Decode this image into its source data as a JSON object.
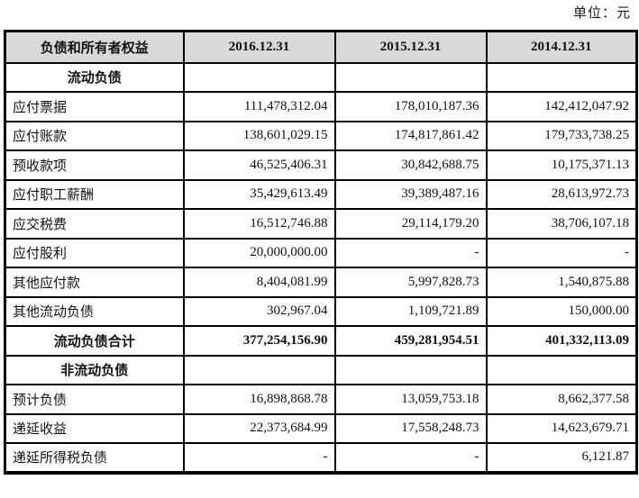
{
  "meta": {
    "unit_label": "单位：元"
  },
  "colors": {
    "header_bg": "#d9d9d9",
    "border": "#000000"
  },
  "table": {
    "columns": [
      "负债和所有者权益",
      "2016.12.31",
      "2015.12.31",
      "2014.12.31"
    ],
    "rows": [
      {
        "label": "流动负债",
        "style": "section",
        "values": [
          "",
          "",
          ""
        ]
      },
      {
        "label": "应付票据",
        "style": "item",
        "values": [
          "111,478,312.04",
          "178,010,187.36",
          "142,412,047.92"
        ]
      },
      {
        "label": "应付账款",
        "style": "item",
        "values": [
          "138,601,029.15",
          "174,817,861.42",
          "179,733,738.25"
        ]
      },
      {
        "label": "预收款项",
        "style": "item",
        "values": [
          "46,525,406.31",
          "30,842,688.75",
          "10,175,371.13"
        ]
      },
      {
        "label": "应付职工薪酬",
        "style": "item",
        "values": [
          "35,429,613.49",
          "39,389,487.16",
          "28,613,972.73"
        ]
      },
      {
        "label": "应交税费",
        "style": "item",
        "values": [
          "16,512,746.88",
          "29,114,179.20",
          "38,706,107.18"
        ]
      },
      {
        "label": "应付股利",
        "style": "item",
        "values": [
          "20,000,000.00",
          "-",
          "-"
        ]
      },
      {
        "label": "其他应付款",
        "style": "item",
        "values": [
          "8,404,081.99",
          "5,997,828.73",
          "1,540,875.88"
        ]
      },
      {
        "label": "其他流动负债",
        "style": "item",
        "values": [
          "302,967.04",
          "1,109,721.89",
          "150,000.00"
        ]
      },
      {
        "label": "流动负债合计",
        "style": "total",
        "values": [
          "377,254,156.90",
          "459,281,954.51",
          "401,332,113.09"
        ]
      },
      {
        "label": "非流动负债",
        "style": "section",
        "values": [
          "",
          "",
          ""
        ]
      },
      {
        "label": "预计负债",
        "style": "item",
        "values": [
          "16,898,868.78",
          "13,059,753.18",
          "8,662,377.58"
        ]
      },
      {
        "label": "递延收益",
        "style": "item",
        "values": [
          "22,373,684.99",
          "17,558,248.73",
          "14,623,679.71"
        ]
      },
      {
        "label": "递延所得税负债",
        "style": "item",
        "values": [
          "-",
          "-",
          "6,121.87"
        ]
      }
    ]
  }
}
